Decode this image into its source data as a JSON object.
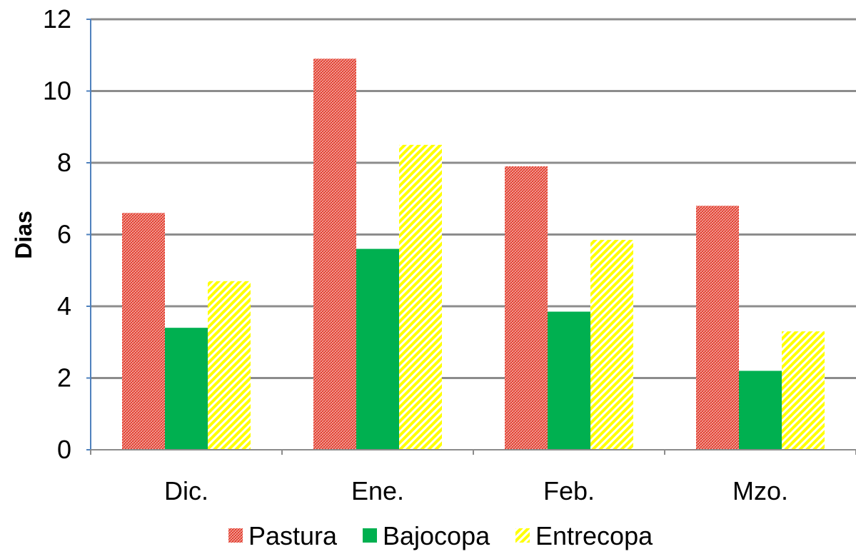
{
  "chart_data": {
    "type": "bar",
    "title": "",
    "xlabel": "",
    "ylabel": "Dias",
    "ylim": [
      0,
      12
    ],
    "yticks": [
      "0",
      "2",
      "4",
      "6",
      "8",
      "10",
      "12"
    ],
    "grid": true,
    "legend_position": "bottom",
    "categories": [
      "Dic.",
      "Ene.",
      "Feb.",
      "Mzo."
    ],
    "series": [
      {
        "name": "Pastura",
        "values": [
          6.6,
          10.9,
          7.9,
          6.8
        ],
        "color": "#e8392b",
        "pattern": "dotted-hatch"
      },
      {
        "name": "Bajocopa",
        "values": [
          3.4,
          5.6,
          3.85,
          2.2
        ],
        "color": "#00b050",
        "pattern": "solid"
      },
      {
        "name": "Entrecopa",
        "values": [
          4.7,
          8.5,
          5.85,
          3.3
        ],
        "color": "#ffff00",
        "pattern": "diagonal-stripes"
      }
    ]
  }
}
